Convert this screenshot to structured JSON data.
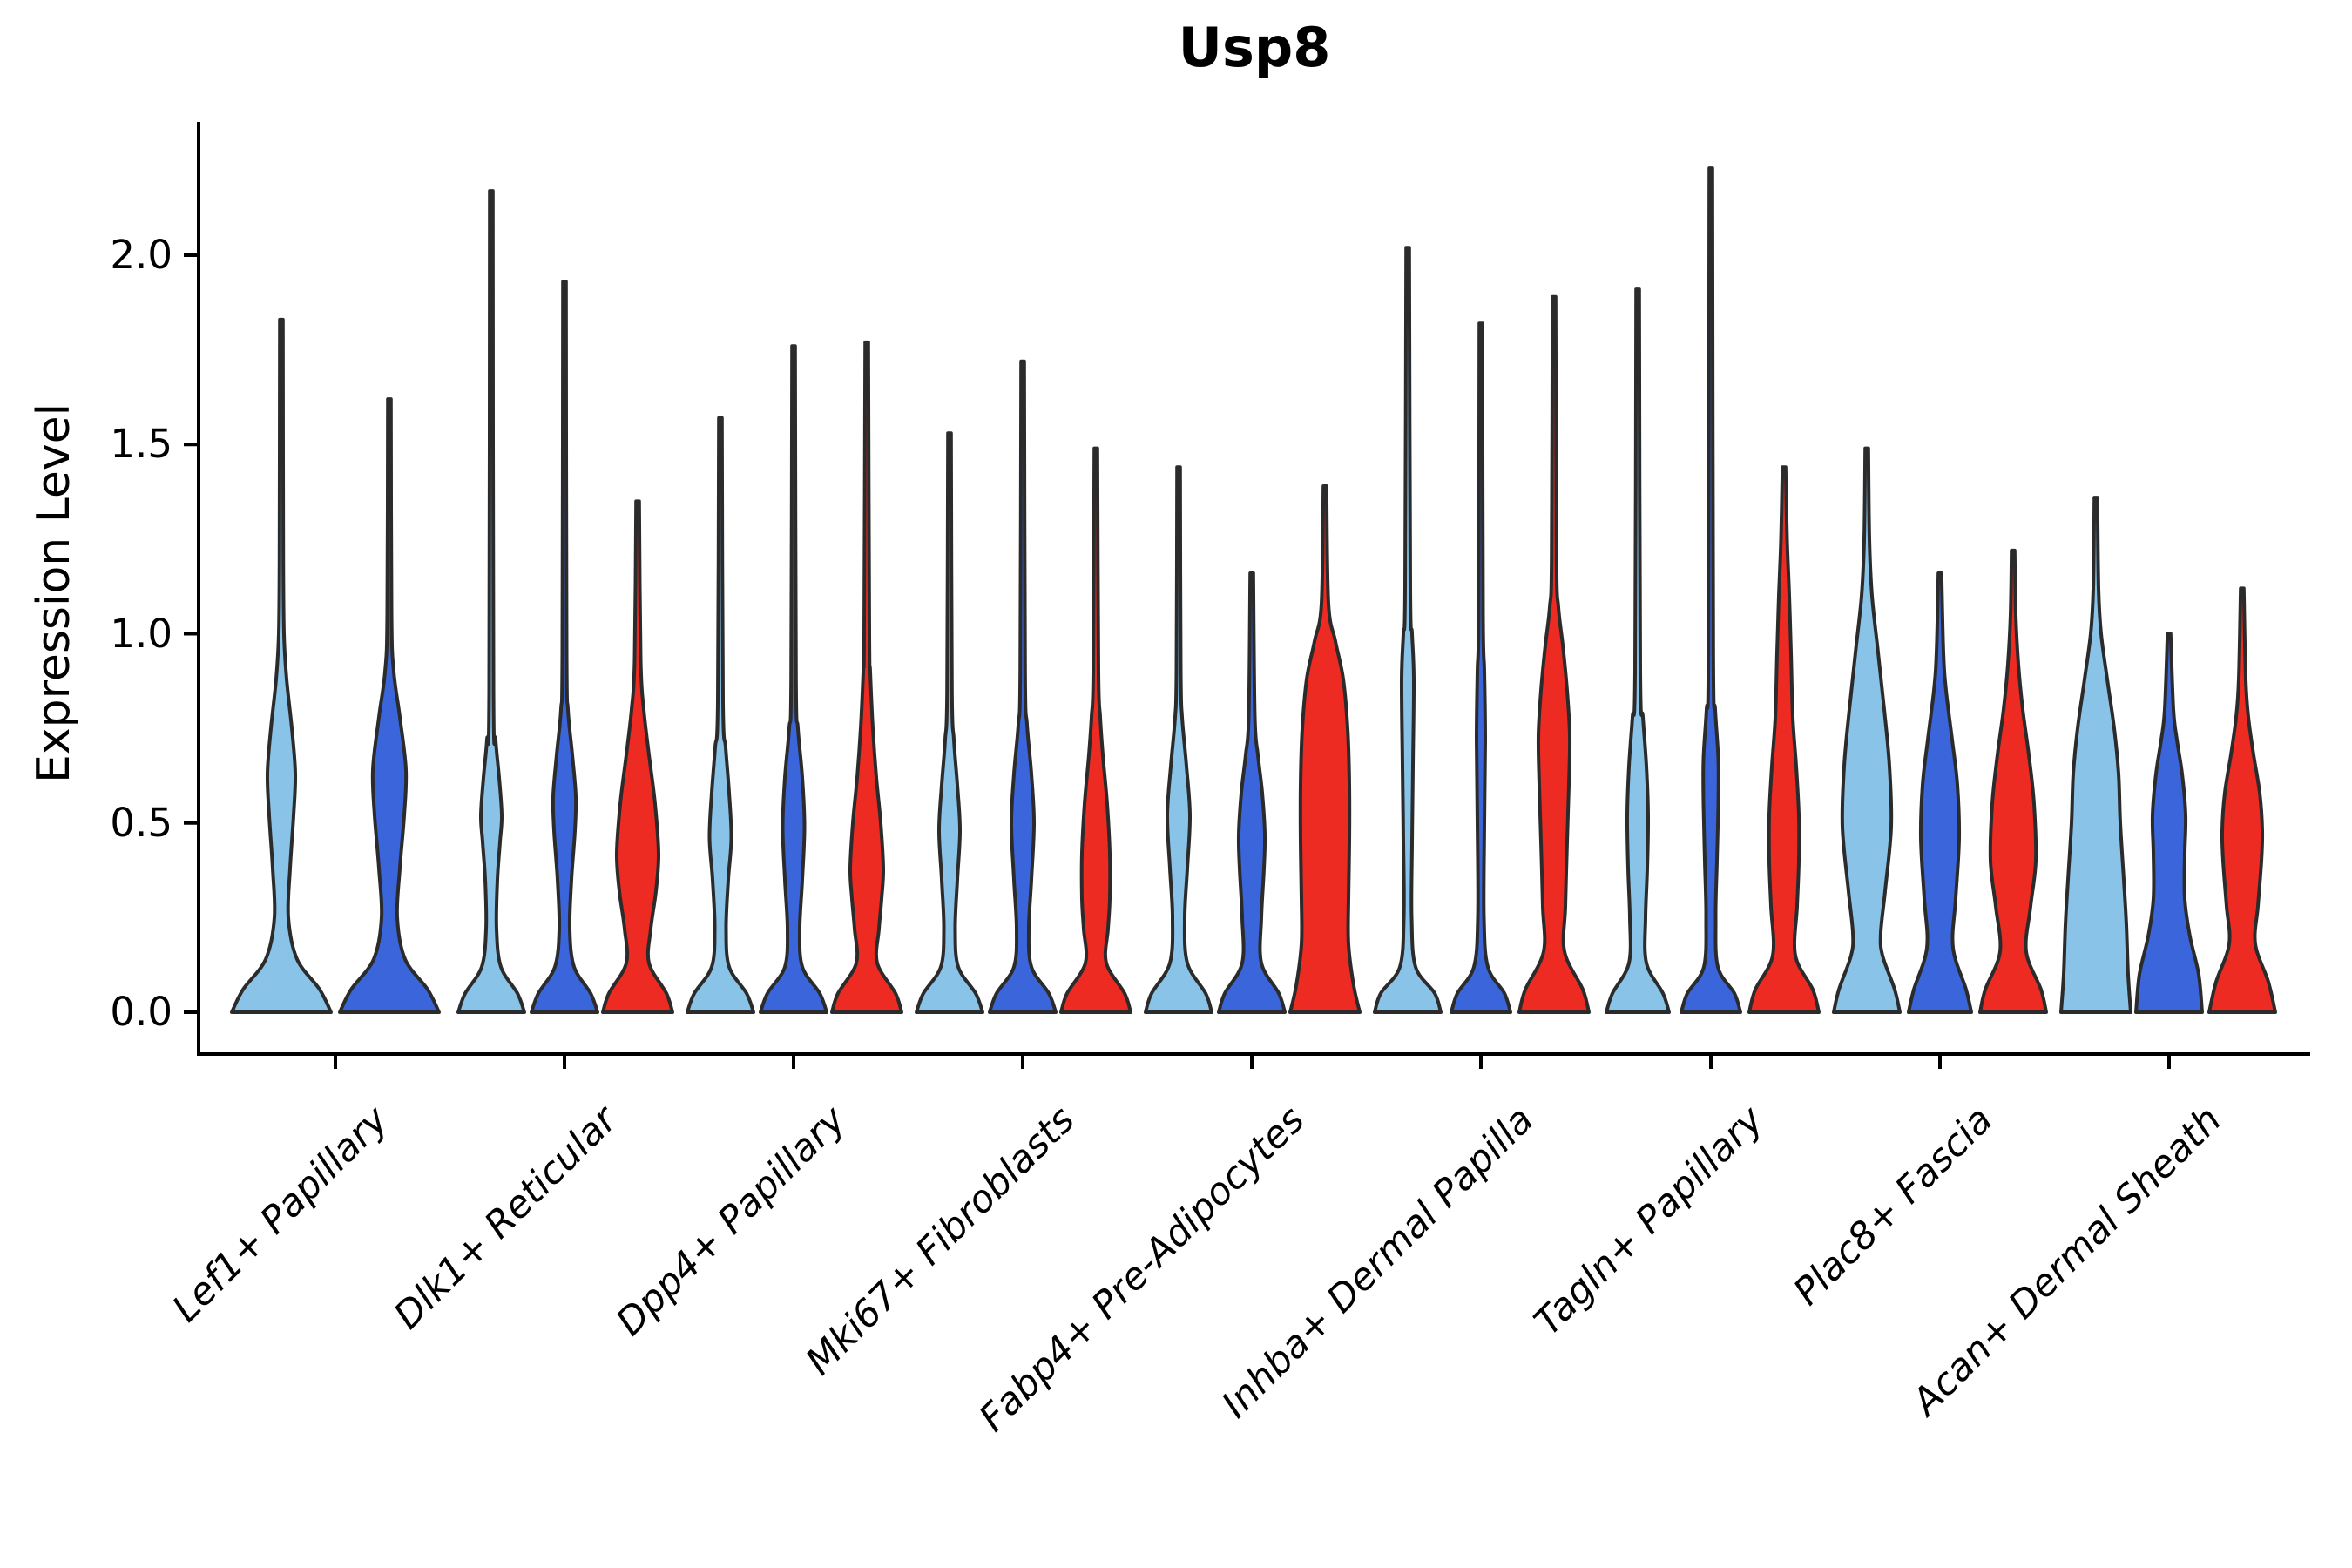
{
  "chart_data": {
    "type": "violin",
    "title": "Usp8",
    "ylabel": "Expression Level",
    "xlabel": "",
    "legend": "none",
    "grid": false,
    "ylim": [
      -0.12,
      2.35
    ],
    "yticks": [
      {
        "value": 0.0,
        "label": "0.0"
      },
      {
        "value": 0.5,
        "label": "0.5"
      },
      {
        "value": 1.0,
        "label": "1.0"
      },
      {
        "value": 1.5,
        "label": "1.5"
      },
      {
        "value": 2.0,
        "label": "2.0"
      }
    ],
    "categories": [
      "Lef1+ Papillary",
      "Dlk1+ Reticular",
      "Dpp4+ Papillary",
      "Mki67+ Fibroblasts",
      "Fabp4+ Pre-Adipocytes",
      "Inhba+ Dermal Papilla",
      "Tagln+ Papillary",
      "Plac8+ Fascia",
      "Acan+ Dermal Sheath"
    ],
    "splits": [
      {
        "id": "light-blue",
        "color": "#8AC3E8"
      },
      {
        "id": "dark-blue",
        "color": "#3B66DB"
      },
      {
        "id": "red",
        "color": "#EE2B23"
      }
    ],
    "colors": {
      "axis": "#000000",
      "violin_outline": "#2B2B2B",
      "background": "#FFFFFF"
    },
    "violins": [
      {
        "cat": 0,
        "split": 0,
        "max": 1.83,
        "profile": [
          [
            0,
            57
          ],
          [
            0.06,
            44
          ],
          [
            0.14,
            18
          ],
          [
            0.25,
            8
          ],
          [
            0.38,
            10
          ],
          [
            0.52,
            14
          ],
          [
            0.63,
            16
          ],
          [
            0.75,
            12
          ],
          [
            0.88,
            6
          ],
          [
            1.0,
            3
          ],
          [
            1.2,
            2.2
          ],
          [
            1.83,
            1.8
          ]
        ]
      },
      {
        "cat": 0,
        "split": 1,
        "max": 1.62,
        "profile": [
          [
            0,
            57
          ],
          [
            0.06,
            44
          ],
          [
            0.14,
            18
          ],
          [
            0.25,
            9
          ],
          [
            0.38,
            12
          ],
          [
            0.52,
            17
          ],
          [
            0.64,
            19
          ],
          [
            0.78,
            12
          ],
          [
            0.9,
            5
          ],
          [
            1.05,
            2.5
          ],
          [
            1.62,
            1.8
          ]
        ]
      },
      {
        "cat": 1,
        "split": 0,
        "max": 2.17,
        "profile": [
          [
            0,
            38
          ],
          [
            0.05,
            30
          ],
          [
            0.12,
            11
          ],
          [
            0.22,
            6
          ],
          [
            0.35,
            7
          ],
          [
            0.45,
            10
          ],
          [
            0.52,
            12
          ],
          [
            0.62,
            9
          ],
          [
            0.72,
            5
          ],
          [
            0.85,
            2.5
          ],
          [
            2.17,
            1.8
          ]
        ]
      },
      {
        "cat": 1,
        "split": 1,
        "max": 1.93,
        "profile": [
          [
            0,
            38
          ],
          [
            0.05,
            30
          ],
          [
            0.12,
            11
          ],
          [
            0.22,
            6
          ],
          [
            0.35,
            8
          ],
          [
            0.48,
            12
          ],
          [
            0.57,
            13
          ],
          [
            0.68,
            9
          ],
          [
            0.8,
            4
          ],
          [
            0.95,
            2.5
          ],
          [
            1.93,
            1.8
          ]
        ]
      },
      {
        "cat": 1,
        "split": 2,
        "max": 1.35,
        "profile": [
          [
            0,
            40
          ],
          [
            0.05,
            33
          ],
          [
            0.13,
            13
          ],
          [
            0.22,
            15
          ],
          [
            0.32,
            21
          ],
          [
            0.42,
            24
          ],
          [
            0.55,
            20
          ],
          [
            0.68,
            13
          ],
          [
            0.8,
            7
          ],
          [
            0.93,
            3.5
          ],
          [
            1.35,
            1.8
          ]
        ]
      },
      {
        "cat": 2,
        "split": 0,
        "max": 1.57,
        "profile": [
          [
            0,
            38
          ],
          [
            0.05,
            30
          ],
          [
            0.12,
            10
          ],
          [
            0.22,
            6.5
          ],
          [
            0.35,
            9
          ],
          [
            0.46,
            12.5
          ],
          [
            0.58,
            10
          ],
          [
            0.7,
            6
          ],
          [
            0.82,
            3
          ],
          [
            1.57,
            1.8
          ]
        ]
      },
      {
        "cat": 2,
        "split": 1,
        "max": 1.76,
        "profile": [
          [
            0,
            38
          ],
          [
            0.05,
            30
          ],
          [
            0.12,
            10
          ],
          [
            0.22,
            7
          ],
          [
            0.35,
            10
          ],
          [
            0.49,
            12.5
          ],
          [
            0.62,
            10
          ],
          [
            0.75,
            5
          ],
          [
            0.88,
            2.8
          ],
          [
            1.76,
            1.8
          ]
        ]
      },
      {
        "cat": 2,
        "split": 2,
        "max": 1.77,
        "profile": [
          [
            0,
            40
          ],
          [
            0.05,
            33
          ],
          [
            0.13,
            12
          ],
          [
            0.22,
            14
          ],
          [
            0.3,
            17
          ],
          [
            0.38,
            19
          ],
          [
            0.5,
            16
          ],
          [
            0.62,
            11
          ],
          [
            0.75,
            7
          ],
          [
            0.9,
            4
          ],
          [
            1.0,
            3
          ],
          [
            1.77,
            1.8
          ]
        ]
      },
      {
        "cat": 3,
        "split": 0,
        "max": 1.53,
        "profile": [
          [
            0,
            38
          ],
          [
            0.05,
            30
          ],
          [
            0.12,
            10
          ],
          [
            0.22,
            6.5
          ],
          [
            0.35,
            9
          ],
          [
            0.48,
            12
          ],
          [
            0.6,
            9
          ],
          [
            0.72,
            5
          ],
          [
            0.85,
            2.8
          ],
          [
            1.53,
            1.8
          ]
        ]
      },
      {
        "cat": 3,
        "split": 1,
        "max": 1.72,
        "profile": [
          [
            0,
            38
          ],
          [
            0.05,
            30
          ],
          [
            0.12,
            10
          ],
          [
            0.22,
            7
          ],
          [
            0.35,
            10
          ],
          [
            0.5,
            13
          ],
          [
            0.63,
            10
          ],
          [
            0.76,
            5
          ],
          [
            0.9,
            2.8
          ],
          [
            1.72,
            1.8
          ]
        ]
      },
      {
        "cat": 3,
        "split": 2,
        "max": 1.49,
        "profile": [
          [
            0,
            40
          ],
          [
            0.05,
            33
          ],
          [
            0.13,
            12
          ],
          [
            0.22,
            14
          ],
          [
            0.3,
            16
          ],
          [
            0.42,
            16
          ],
          [
            0.55,
            13
          ],
          [
            0.68,
            8
          ],
          [
            0.78,
            5
          ],
          [
            0.9,
            3
          ],
          [
            1.49,
            1.8
          ]
        ]
      },
      {
        "cat": 4,
        "split": 0,
        "max": 1.44,
        "profile": [
          [
            0,
            38
          ],
          [
            0.05,
            31
          ],
          [
            0.13,
            10
          ],
          [
            0.25,
            7
          ],
          [
            0.38,
            10
          ],
          [
            0.52,
            13
          ],
          [
            0.65,
            9
          ],
          [
            0.78,
            4
          ],
          [
            0.9,
            2.5
          ],
          [
            1.44,
            1.8
          ]
        ]
      },
      {
        "cat": 4,
        "split": 1,
        "max": 1.16,
        "profile": [
          [
            0,
            38
          ],
          [
            0.05,
            31
          ],
          [
            0.13,
            11
          ],
          [
            0.25,
            11
          ],
          [
            0.38,
            14
          ],
          [
            0.47,
            15
          ],
          [
            0.58,
            12
          ],
          [
            0.68,
            7
          ],
          [
            0.78,
            3.5
          ],
          [
            1.16,
            1.8
          ]
        ]
      },
      {
        "cat": 4,
        "split": 2,
        "max": 1.39,
        "profile": [
          [
            0,
            40
          ],
          [
            0.07,
            33
          ],
          [
            0.18,
            27
          ],
          [
            0.3,
            27
          ],
          [
            0.45,
            28
          ],
          [
            0.6,
            28
          ],
          [
            0.75,
            26
          ],
          [
            0.88,
            21
          ],
          [
            0.98,
            12
          ],
          [
            1.08,
            4
          ],
          [
            1.39,
            1.8
          ]
        ]
      },
      {
        "cat": 5,
        "split": 0,
        "max": 2.02,
        "profile": [
          [
            0,
            38
          ],
          [
            0.05,
            31
          ],
          [
            0.12,
            9
          ],
          [
            0.25,
            4.5
          ],
          [
            0.45,
            5
          ],
          [
            0.65,
            6
          ],
          [
            0.88,
            7
          ],
          [
            1.0,
            5
          ],
          [
            1.12,
            3
          ],
          [
            2.02,
            1.8
          ]
        ]
      },
      {
        "cat": 5,
        "split": 1,
        "max": 1.82,
        "profile": [
          [
            0,
            34
          ],
          [
            0.05,
            27
          ],
          [
            0.12,
            8
          ],
          [
            0.25,
            3.5
          ],
          [
            0.5,
            4
          ],
          [
            0.72,
            5
          ],
          [
            0.9,
            4
          ],
          [
            1.05,
            2.5
          ],
          [
            1.82,
            1.8
          ]
        ]
      },
      {
        "cat": 5,
        "split": 2,
        "max": 1.89,
        "profile": [
          [
            0,
            40
          ],
          [
            0.06,
            33
          ],
          [
            0.16,
            12
          ],
          [
            0.28,
            13
          ],
          [
            0.45,
            15
          ],
          [
            0.6,
            17
          ],
          [
            0.73,
            18
          ],
          [
            0.85,
            15
          ],
          [
            0.97,
            10
          ],
          [
            1.07,
            5
          ],
          [
            1.2,
            2.8
          ],
          [
            1.89,
            1.8
          ]
        ]
      },
      {
        "cat": 6,
        "split": 0,
        "max": 1.91,
        "profile": [
          [
            0,
            36
          ],
          [
            0.05,
            29
          ],
          [
            0.13,
            10
          ],
          [
            0.25,
            9
          ],
          [
            0.38,
            11
          ],
          [
            0.52,
            12
          ],
          [
            0.65,
            10
          ],
          [
            0.78,
            6
          ],
          [
            0.9,
            3
          ],
          [
            1.91,
            1.8
          ]
        ]
      },
      {
        "cat": 6,
        "split": 1,
        "max": 2.23,
        "profile": [
          [
            0,
            34
          ],
          [
            0.05,
            27
          ],
          [
            0.12,
            8
          ],
          [
            0.25,
            5.5
          ],
          [
            0.4,
            7
          ],
          [
            0.55,
            8.5
          ],
          [
            0.67,
            8.5
          ],
          [
            0.8,
            5
          ],
          [
            0.95,
            2.8
          ],
          [
            2.23,
            1.8
          ]
        ]
      },
      {
        "cat": 6,
        "split": 2,
        "max": 1.44,
        "profile": [
          [
            0,
            40
          ],
          [
            0.06,
            33
          ],
          [
            0.15,
            13
          ],
          [
            0.28,
            15
          ],
          [
            0.4,
            17
          ],
          [
            0.52,
            17
          ],
          [
            0.65,
            14
          ],
          [
            0.78,
            10
          ],
          [
            0.95,
            8
          ],
          [
            1.1,
            6
          ],
          [
            1.25,
            3.5
          ],
          [
            1.44,
            1.8
          ]
        ]
      },
      {
        "cat": 7,
        "split": 0,
        "max": 1.49,
        "profile": [
          [
            0,
            38
          ],
          [
            0.06,
            32
          ],
          [
            0.15,
            18
          ],
          [
            0.21,
            16
          ],
          [
            0.32,
            21
          ],
          [
            0.49,
            28
          ],
          [
            0.65,
            26
          ],
          [
            0.8,
            20
          ],
          [
            0.95,
            13
          ],
          [
            1.1,
            6
          ],
          [
            1.25,
            3
          ],
          [
            1.49,
            1.8
          ]
        ]
      },
      {
        "cat": 7,
        "split": 1,
        "max": 1.16,
        "profile": [
          [
            0,
            36
          ],
          [
            0.06,
            30
          ],
          [
            0.17,
            15
          ],
          [
            0.3,
            18
          ],
          [
            0.46,
            22
          ],
          [
            0.6,
            20
          ],
          [
            0.72,
            14
          ],
          [
            0.85,
            7
          ],
          [
            0.95,
            4
          ],
          [
            1.16,
            1.8
          ]
        ]
      },
      {
        "cat": 7,
        "split": 2,
        "max": 1.22,
        "profile": [
          [
            0,
            38
          ],
          [
            0.06,
            32
          ],
          [
            0.16,
            15
          ],
          [
            0.28,
            20
          ],
          [
            0.4,
            26
          ],
          [
            0.55,
            24
          ],
          [
            0.68,
            18
          ],
          [
            0.8,
            11
          ],
          [
            0.92,
            6
          ],
          [
            1.05,
            3
          ],
          [
            1.22,
            1.8
          ]
        ]
      },
      {
        "cat": 8,
        "split": 0,
        "max": 1.36,
        "profile": [
          [
            0,
            40
          ],
          [
            0.1,
            37
          ],
          [
            0.23,
            35
          ],
          [
            0.35,
            32
          ],
          [
            0.5,
            28
          ],
          [
            0.63,
            26
          ],
          [
            0.75,
            21
          ],
          [
            0.88,
            13
          ],
          [
            1.0,
            6
          ],
          [
            1.12,
            3
          ],
          [
            1.36,
            1.8
          ]
        ]
      },
      {
        "cat": 8,
        "split": 1,
        "max": 1.0,
        "profile": [
          [
            0,
            38
          ],
          [
            0.1,
            34
          ],
          [
            0.2,
            24
          ],
          [
            0.3,
            18
          ],
          [
            0.42,
            18
          ],
          [
            0.52,
            19
          ],
          [
            0.63,
            15
          ],
          [
            0.72,
            9
          ],
          [
            0.8,
            5
          ],
          [
            1.0,
            1.8
          ]
        ]
      },
      {
        "cat": 8,
        "split": 2,
        "max": 1.12,
        "profile": [
          [
            0,
            38
          ],
          [
            0.08,
            30
          ],
          [
            0.18,
            15
          ],
          [
            0.28,
            18
          ],
          [
            0.4,
            22
          ],
          [
            0.48,
            23
          ],
          [
            0.58,
            20
          ],
          [
            0.68,
            13
          ],
          [
            0.78,
            7
          ],
          [
            0.88,
            4
          ],
          [
            1.12,
            1.8
          ]
        ]
      }
    ]
  }
}
